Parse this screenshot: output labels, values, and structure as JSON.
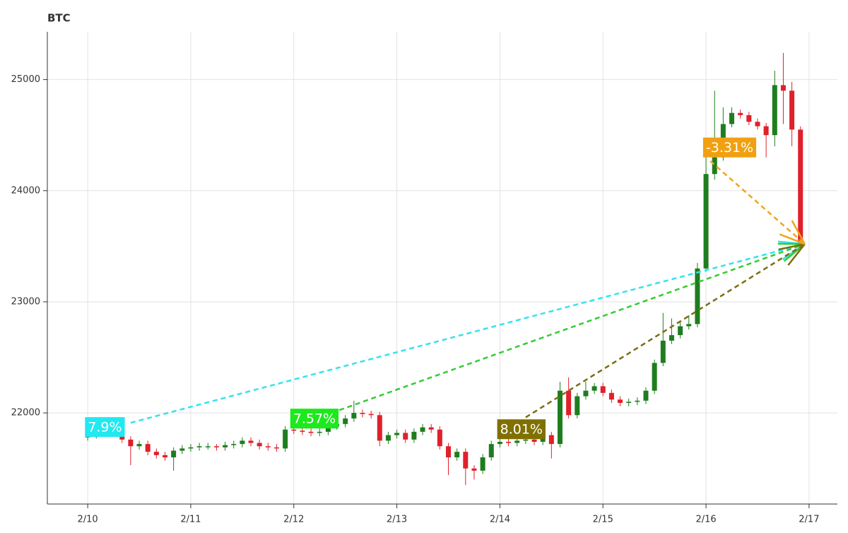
{
  "chart_data": {
    "type": "candlestick",
    "title": "BTC",
    "up_color": "#1e7d1e",
    "down_color": "#e0202a",
    "grid": true,
    "xlim": [
      -9.4,
      174.6
    ],
    "ylim": [
      21180,
      25430
    ],
    "xticks": [
      {
        "value": 0,
        "label": "2/10"
      },
      {
        "value": 24,
        "label": "2/11"
      },
      {
        "value": 48,
        "label": "2/12"
      },
      {
        "value": 72,
        "label": "2/13"
      },
      {
        "value": 96,
        "label": "2/14"
      },
      {
        "value": 120,
        "label": "2/15"
      },
      {
        "value": 144,
        "label": "2/16"
      },
      {
        "value": 168,
        "label": "2/17"
      }
    ],
    "yticks": [
      22000,
      23000,
      24000,
      25000
    ],
    "x": [
      0,
      2,
      4,
      6,
      8,
      10,
      12,
      14,
      16,
      18,
      20,
      22,
      24,
      26,
      28,
      30,
      32,
      34,
      36,
      38,
      40,
      42,
      44,
      46,
      48,
      50,
      52,
      54,
      56,
      58,
      60,
      62,
      64,
      66,
      68,
      70,
      72,
      74,
      76,
      78,
      80,
      82,
      84,
      86,
      88,
      90,
      92,
      94,
      96,
      98,
      100,
      102,
      104,
      106,
      108,
      110,
      112,
      114,
      116,
      118,
      120,
      122,
      124,
      126,
      128,
      130,
      132,
      134,
      136,
      138,
      140,
      142,
      144,
      146,
      148,
      150,
      152,
      154,
      156,
      158,
      160,
      162,
      164,
      166
    ],
    "open": [
      21780,
      21800,
      21830,
      21860,
      21820,
      21760,
      21700,
      21720,
      21650,
      21620,
      21600,
      21660,
      21680,
      21690,
      21700,
      21700,
      21690,
      21710,
      21720,
      21750,
      21730,
      21700,
      21690,
      21680,
      21850,
      21840,
      21830,
      21820,
      21830,
      21880,
      21900,
      21950,
      22000,
      21990,
      21980,
      21750,
      21800,
      21820,
      21760,
      21830,
      21870,
      21850,
      21700,
      21600,
      21650,
      21500,
      21480,
      21600,
      21720,
      21740,
      21730,
      21750,
      21760,
      21740,
      21800,
      21720,
      22200,
      21980,
      22150,
      22200,
      22240,
      22180,
      22120,
      22090,
      22100,
      22110,
      22200,
      22450,
      22650,
      22700,
      22780,
      22800,
      23300,
      24150,
      24300,
      24600,
      24700,
      24680,
      24620,
      24580,
      24500,
      24950,
      24900,
      24550
    ],
    "high": [
      21830,
      21860,
      21890,
      21890,
      21850,
      21790,
      21750,
      21750,
      21680,
      21650,
      21690,
      21710,
      21720,
      21730,
      21730,
      21720,
      21740,
      21750,
      21780,
      21780,
      21760,
      21730,
      21720,
      21880,
      21880,
      21870,
      21860,
      21860,
      21910,
      21930,
      21980,
      22110,
      22030,
      22020,
      22010,
      21830,
      21850,
      21850,
      21860,
      21900,
      21900,
      21880,
      21730,
      21680,
      21680,
      21530,
      21630,
      21750,
      21770,
      21770,
      21780,
      21790,
      21790,
      21830,
      21830,
      22280,
      22320,
      22180,
      22280,
      22270,
      22270,
      22210,
      22150,
      22130,
      22140,
      22230,
      22480,
      22900,
      22850,
      22830,
      22880,
      23350,
      24300,
      24900,
      24750,
      24750,
      24730,
      24710,
      24650,
      24610,
      25080,
      25240,
      24980,
      24580
    ],
    "low": [
      21750,
      21770,
      21800,
      21790,
      21730,
      21530,
      21670,
      21620,
      21590,
      21570,
      21480,
      21630,
      21650,
      21660,
      21670,
      21660,
      21660,
      21680,
      21690,
      21700,
      21670,
      21660,
      21650,
      21650,
      21810,
      21800,
      21790,
      21790,
      21800,
      21850,
      21870,
      21920,
      21960,
      21950,
      21700,
      21720,
      21770,
      21730,
      21730,
      21800,
      21820,
      21670,
      21440,
      21570,
      21350,
      21400,
      21450,
      21570,
      21690,
      21700,
      21700,
      21720,
      21710,
      21710,
      21590,
      21690,
      21950,
      21950,
      22120,
      22170,
      22150,
      22090,
      22060,
      22060,
      22070,
      22080,
      22170,
      22420,
      22620,
      22670,
      22750,
      22770,
      23270,
      24100,
      24270,
      24570,
      24650,
      24590,
      24550,
      24300,
      24400,
      24600,
      24400,
      23500
    ],
    "close": [
      21800,
      21830,
      21860,
      21820,
      21760,
      21700,
      21720,
      21650,
      21620,
      21600,
      21660,
      21680,
      21690,
      21700,
      21700,
      21690,
      21710,
      21720,
      21750,
      21730,
      21700,
      21690,
      21680,
      21850,
      21840,
      21830,
      21820,
      21830,
      21880,
      21900,
      21950,
      22000,
      21990,
      21980,
      21750,
      21800,
      21820,
      21760,
      21830,
      21870,
      21850,
      21700,
      21600,
      21650,
      21500,
      21480,
      21600,
      21720,
      21740,
      21730,
      21750,
      21760,
      21740,
      21800,
      21720,
      22200,
      21980,
      22150,
      22200,
      22240,
      22180,
      22120,
      22090,
      22100,
      22110,
      22200,
      22450,
      22650,
      22700,
      22780,
      22800,
      23300,
      24150,
      24300,
      24600,
      24700,
      24680,
      24620,
      24580,
      24500,
      24950,
      24900,
      24550,
      23520
    ],
    "annotations": [
      {
        "text": "7.9%",
        "color": "#33e3ee",
        "label_color": "#22e8f0",
        "label_x": 4,
        "label_y": 21873,
        "x_start": 10,
        "y_start": 21911,
        "x_end": 167,
        "y_end": 23520
      },
      {
        "text": "7.57%",
        "color": "#33cc33",
        "label_color": "#1ee81e",
        "label_x": 52.8,
        "label_y": 21949,
        "x_start": 58.6,
        "y_start": 22025,
        "x_end": 167,
        "y_end": 23520
      },
      {
        "text": "8.01%",
        "color": "#7a6e10",
        "label_color": "#7f7000",
        "label_x": 101,
        "label_y": 21853,
        "x_start": 102,
        "y_start": 21960,
        "x_end": 167,
        "y_end": 23520
      },
      {
        "text": "-3.31%",
        "color": "#f0a51a",
        "label_color": "#f0a010",
        "label_x": 149.5,
        "label_y": 24389,
        "x_start": 145,
        "y_start": 24267,
        "x_end": 167,
        "y_end": 23520
      }
    ]
  }
}
